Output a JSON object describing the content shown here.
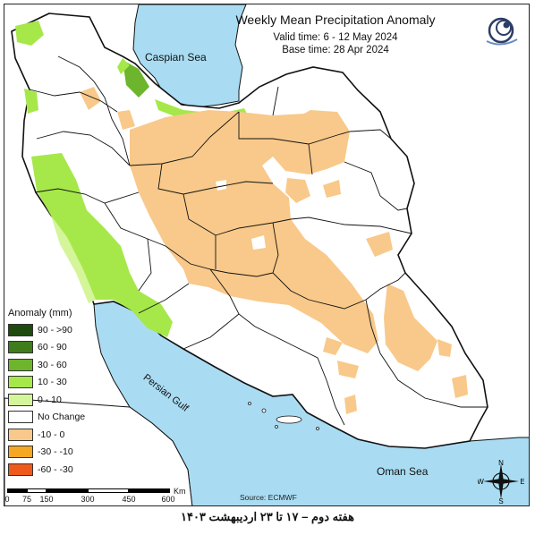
{
  "title": "Weekly Mean Precipitation Anomaly",
  "valid_time": "Valid time: 6 - 12 May 2024",
  "base_time": "Base time: 28 Apr 2024",
  "seas": {
    "caspian": "Caspian Sea",
    "persian_gulf": "Persian Gulf",
    "oman": "Oman Sea"
  },
  "legend": {
    "title": "Anomaly (mm)",
    "items": [
      {
        "label": "90 - >90",
        "color": "#1f4a0f"
      },
      {
        "label": "60 - 90",
        "color": "#3f7d1c"
      },
      {
        "label": "30 - 60",
        "color": "#6db52c"
      },
      {
        "label": "10 - 30",
        "color": "#a6e84a"
      },
      {
        "label": "0 - 10",
        "color": "#d4f59a"
      },
      {
        "label": "No Change",
        "color": "#ffffff"
      },
      {
        "label": "-10 - 0",
        "color": "#f8c98a"
      },
      {
        "label": "-30 - -10",
        "color": "#f5a623"
      },
      {
        "label": "-60 - -30",
        "color": "#ee5a1c"
      }
    ]
  },
  "scale": {
    "ticks": [
      "0",
      "75",
      "150",
      "300",
      "450",
      "600"
    ],
    "unit": "Km"
  },
  "compass": {
    "n": "N",
    "s": "S",
    "e": "E",
    "w": "W"
  },
  "source": "Source: ECMWF",
  "caption": "هفته دوم – ۱۷ تا ۲۳ اردیبهشت ۱۴۰۳",
  "colors": {
    "sea": "#a9dcf2",
    "border": "#111111"
  }
}
